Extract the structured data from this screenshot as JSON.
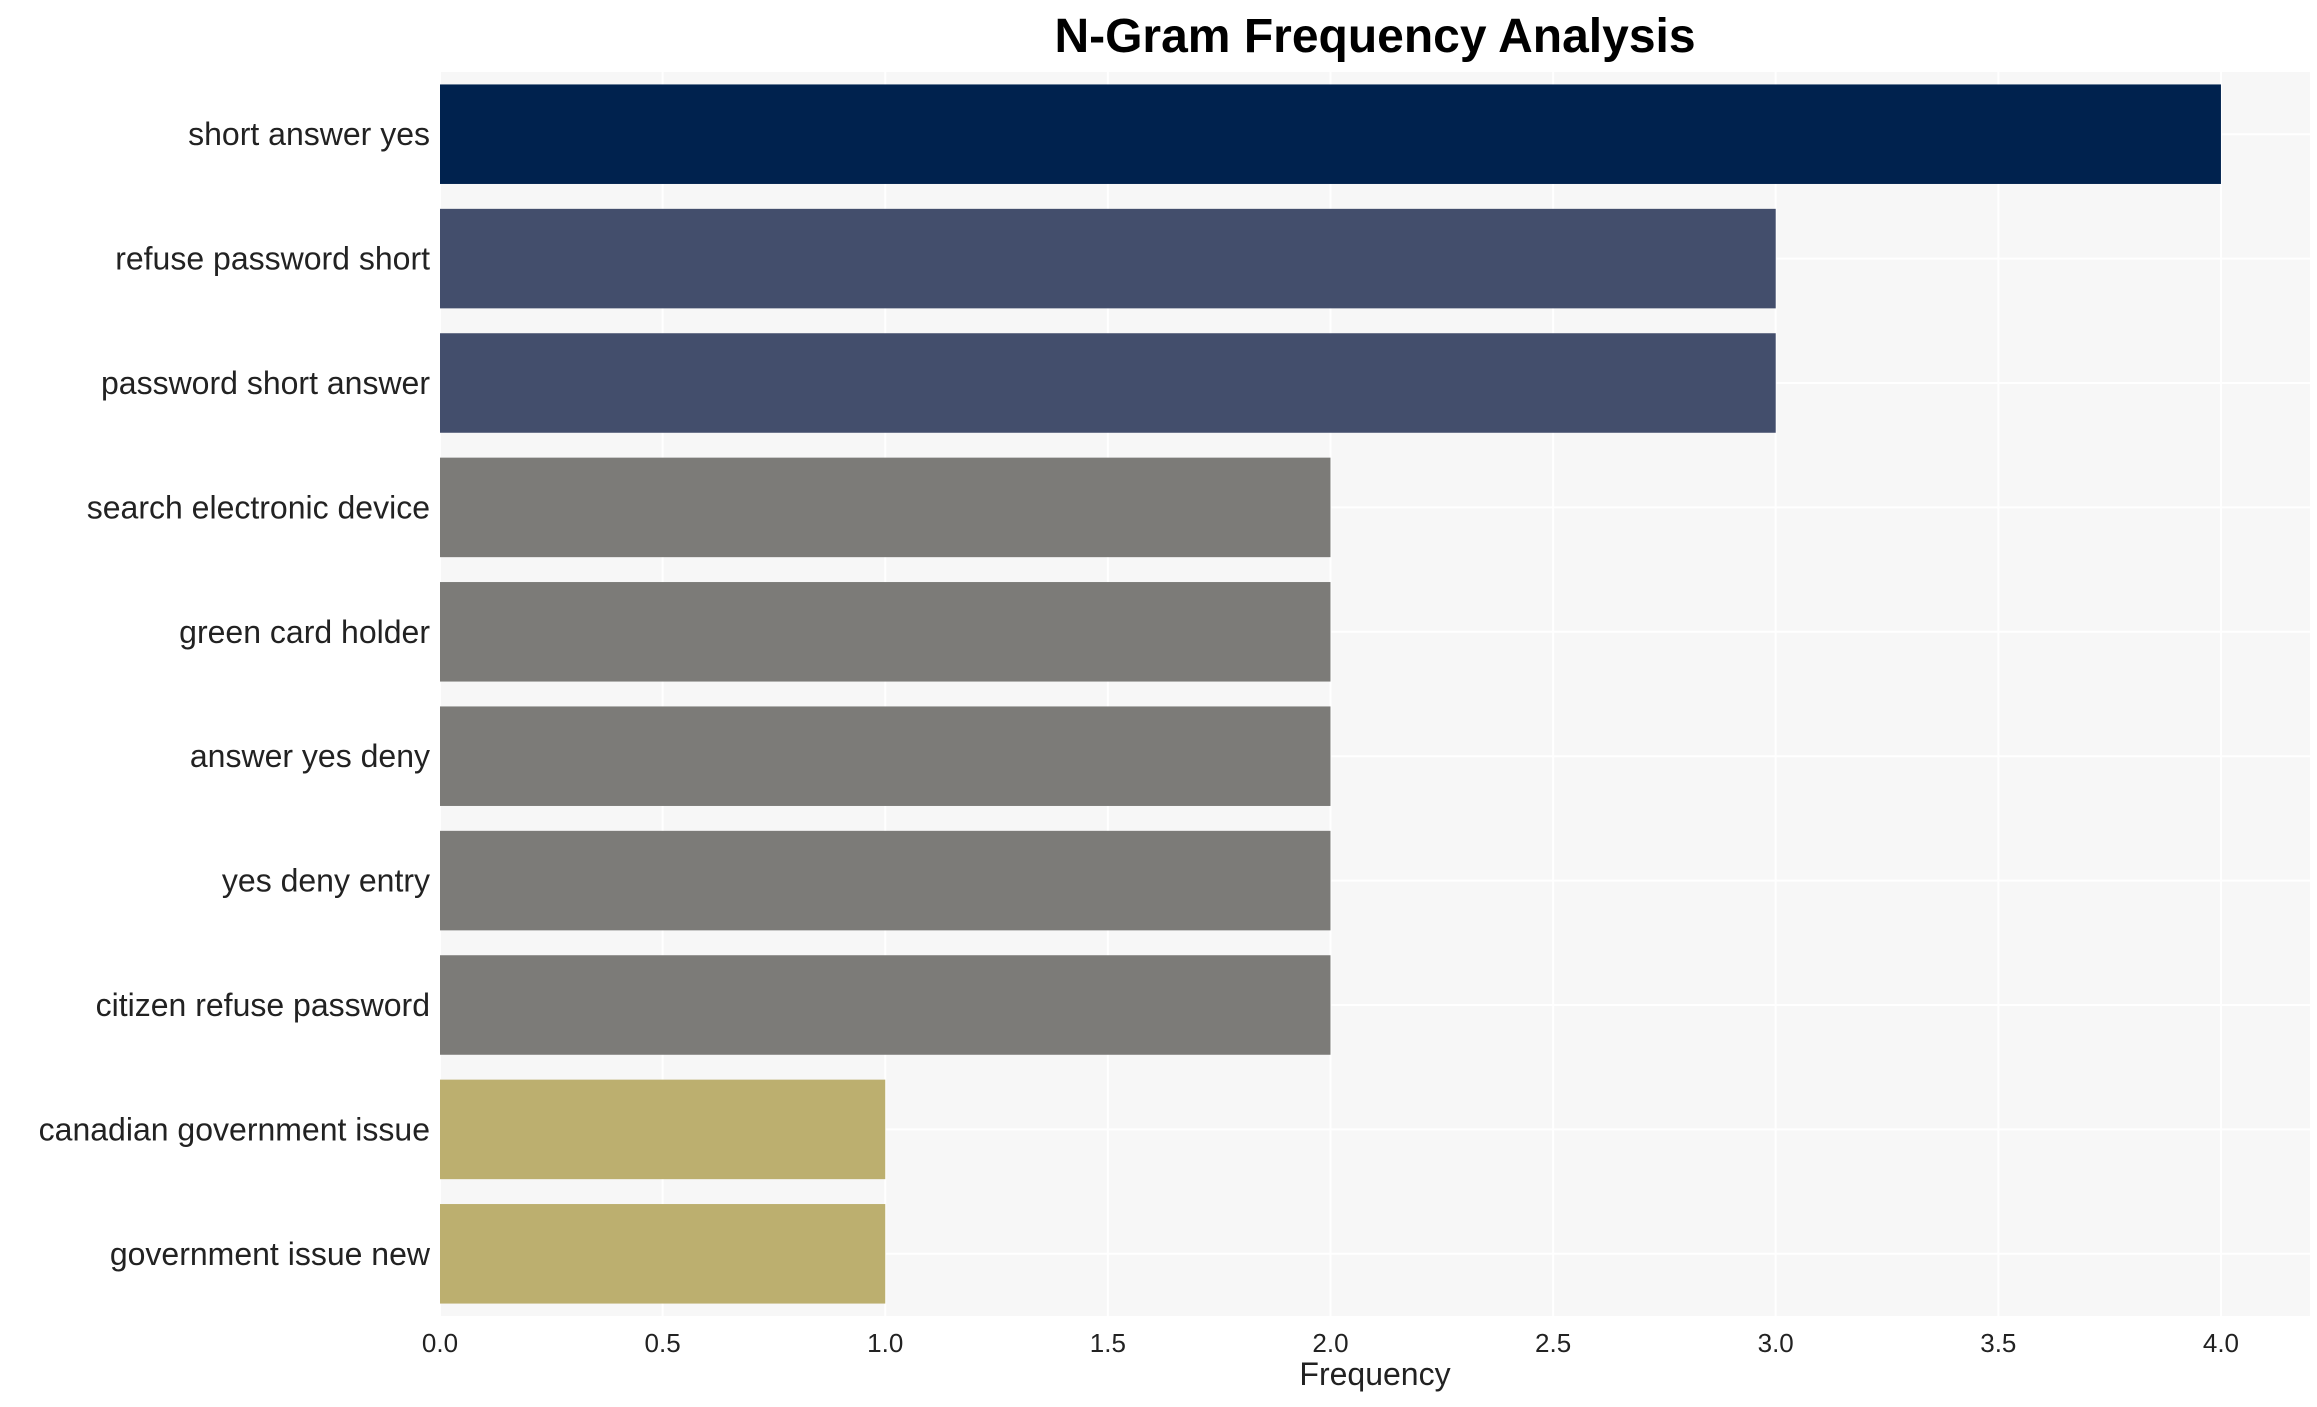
{
  "chart_data": {
    "type": "bar",
    "orientation": "horizontal",
    "title": "N-Gram Frequency Analysis",
    "xlabel": "Frequency",
    "ylabel": "",
    "xlim": [
      0,
      4.2
    ],
    "x_ticks": [
      "0.0",
      "0.5",
      "1.0",
      "1.5",
      "2.0",
      "2.5",
      "3.0",
      "3.5",
      "4.0"
    ],
    "grid": true,
    "legend": "none",
    "categories": [
      "short answer yes",
      "refuse password short",
      "password short answer",
      "search electronic device",
      "green card holder",
      "answer yes deny",
      "yes deny entry",
      "citizen refuse password",
      "canadian government issue",
      "government issue new"
    ],
    "values": [
      4,
      3,
      3,
      2,
      2,
      2,
      2,
      2,
      1,
      1
    ],
    "colors": [
      "#00224e",
      "#434e6c",
      "#434e6c",
      "#7c7b78",
      "#7c7b78",
      "#7c7b78",
      "#7c7b78",
      "#7c7b78",
      "#bcaf6f",
      "#bcaf6f"
    ],
    "plot_background": "#f7f7f7",
    "grid_color": "#ffffff"
  }
}
